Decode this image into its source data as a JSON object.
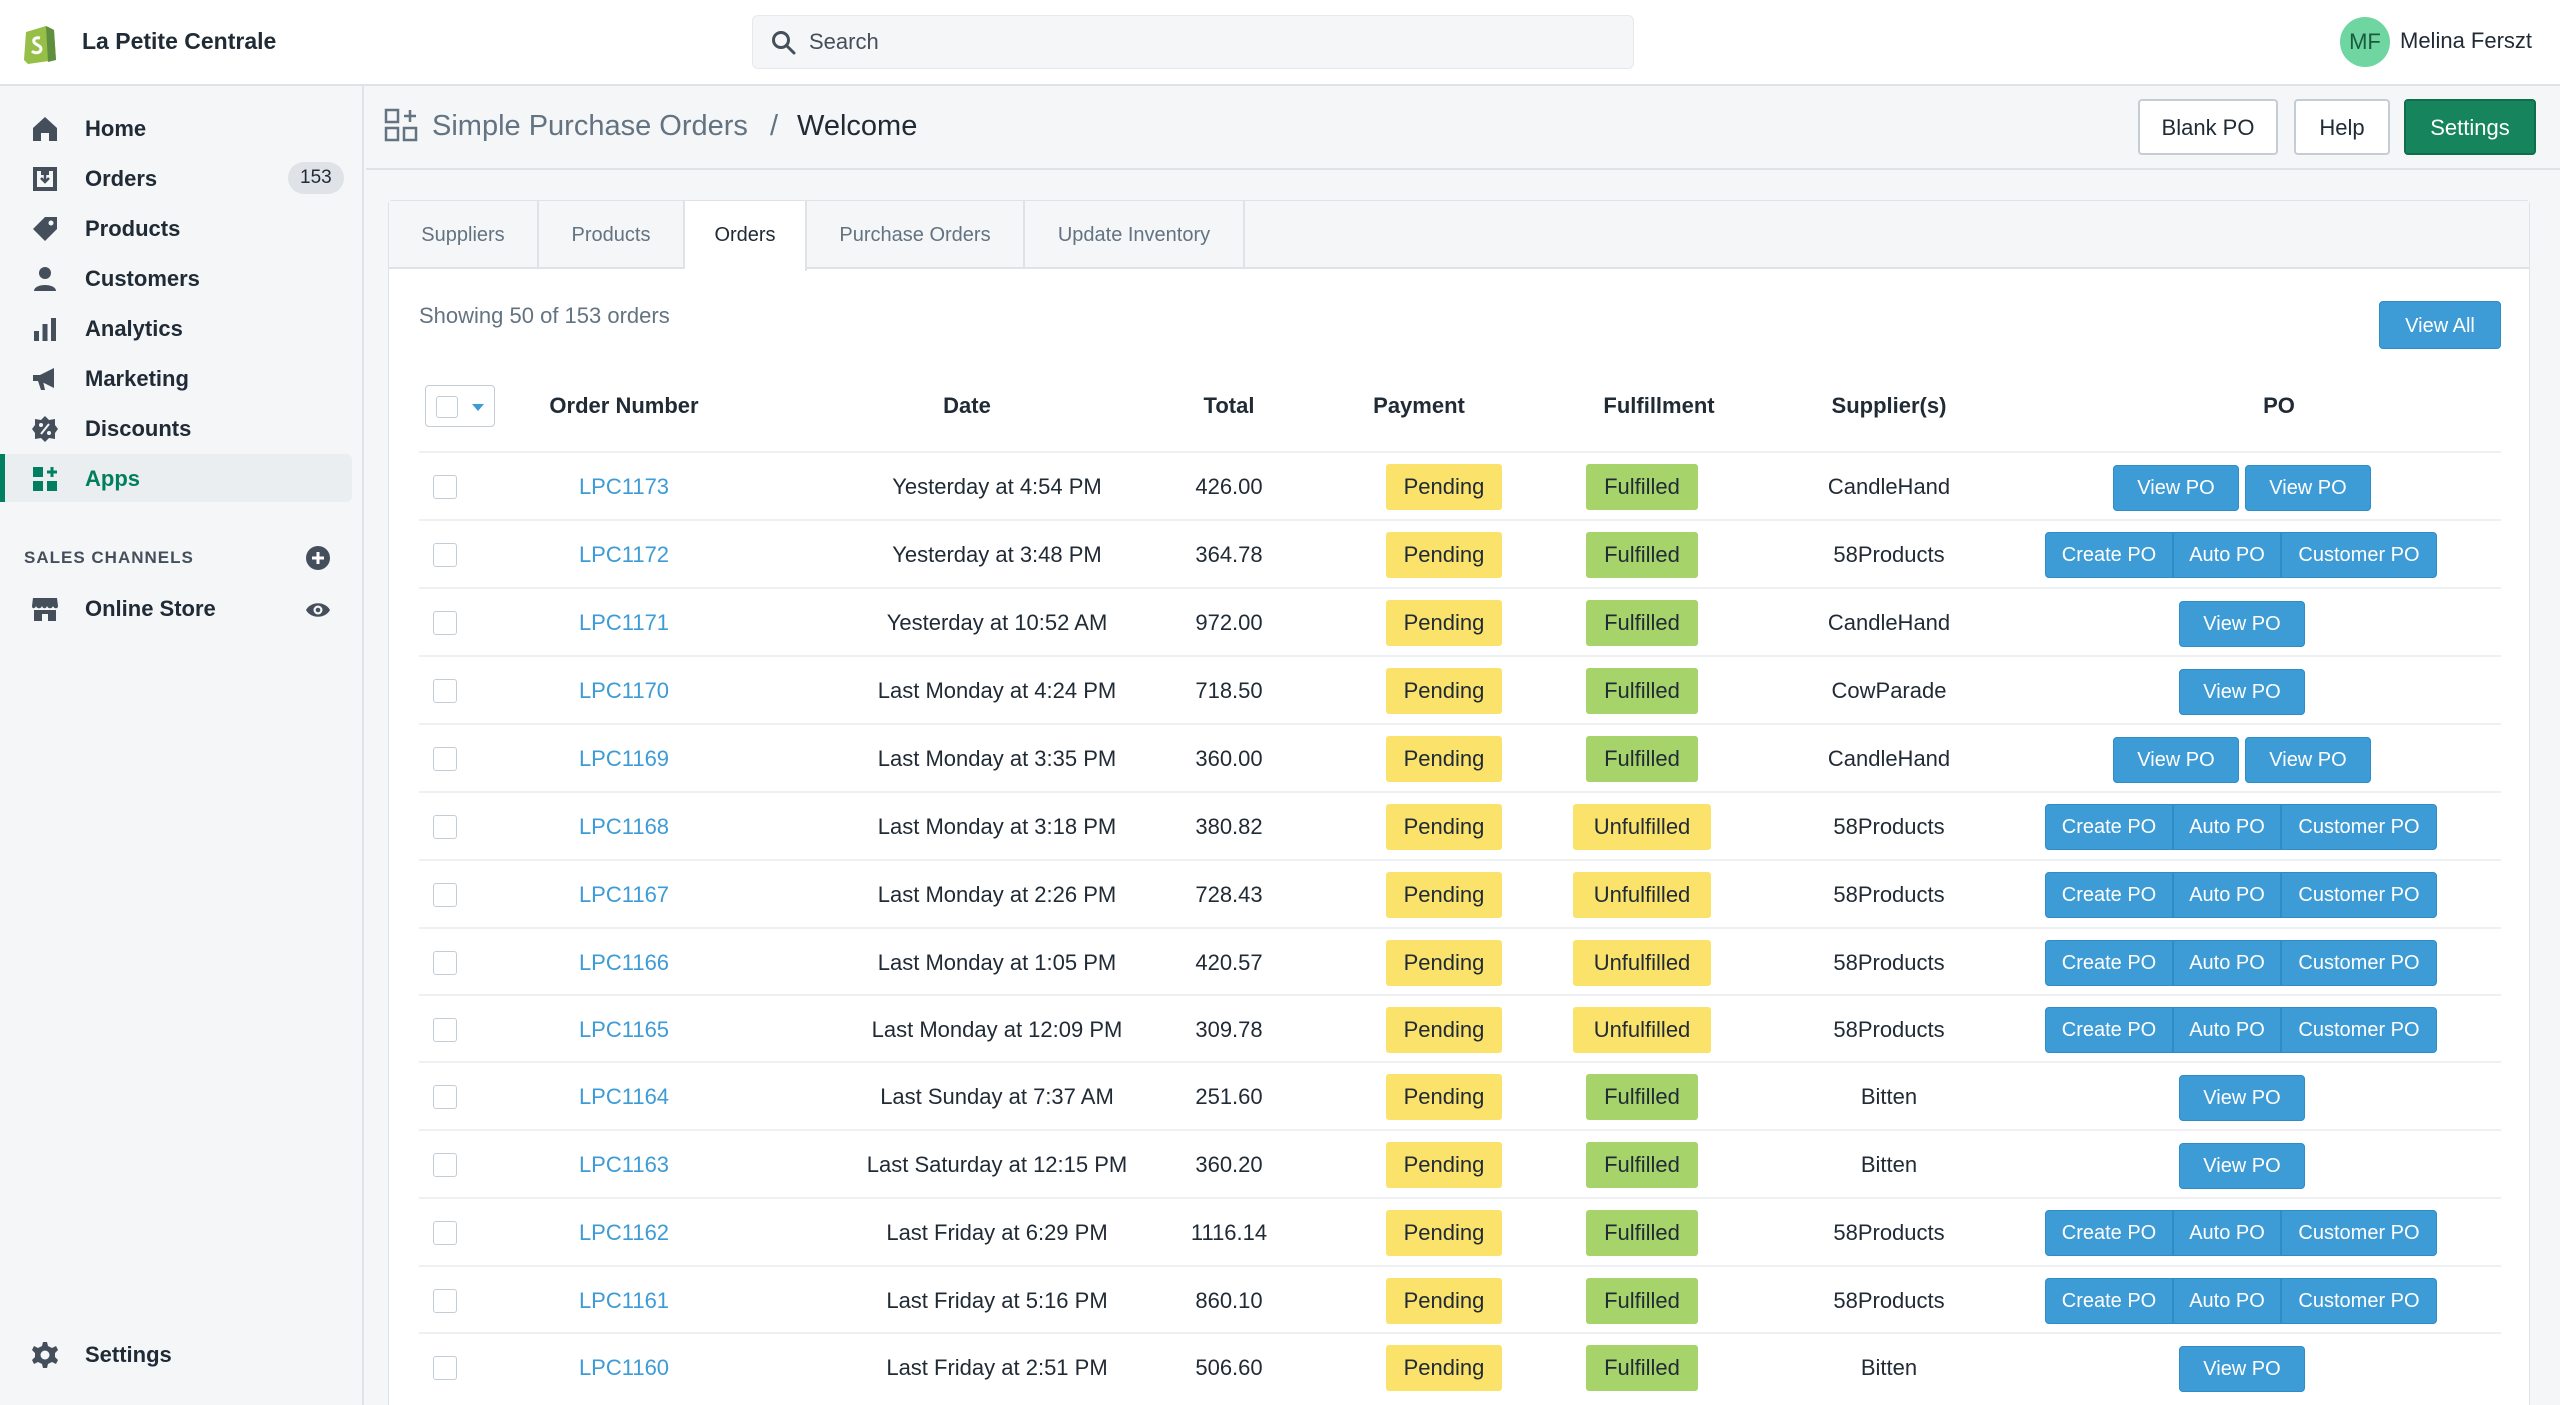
{
  "store": {
    "name": "La Petite Centrale"
  },
  "search": {
    "placeholder": "Search",
    "value": ""
  },
  "user": {
    "initials": "MF",
    "name": "Melina Ferszt"
  },
  "sidebar": {
    "items": [
      {
        "label": "Home",
        "icon": "home-icon"
      },
      {
        "label": "Orders",
        "icon": "orders-icon",
        "badge": "153"
      },
      {
        "label": "Products",
        "icon": "tag-icon"
      },
      {
        "label": "Customers",
        "icon": "person-icon"
      },
      {
        "label": "Analytics",
        "icon": "bar-chart-icon"
      },
      {
        "label": "Marketing",
        "icon": "megaphone-icon"
      },
      {
        "label": "Discounts",
        "icon": "discount-icon"
      },
      {
        "label": "Apps",
        "icon": "apps-icon",
        "active": true
      }
    ],
    "sales_channels_title": "SALES CHANNELS",
    "online_store": "Online Store",
    "settings": "Settings"
  },
  "header": {
    "app_name": "Simple Purchase Orders",
    "separator": "/",
    "page": "Welcome",
    "blank_po": "Blank PO",
    "help": "Help",
    "settings": "Settings"
  },
  "tabs": [
    "Suppliers",
    "Products",
    "Orders",
    "Purchase Orders",
    "Update Inventory"
  ],
  "active_tab": "Orders",
  "showing": "Showing 50 of 153 orders",
  "view_all": "View All",
  "columns": [
    "Order Number",
    "Date",
    "Total",
    "Payment",
    "Fulfillment",
    "Supplier(s)",
    "PO"
  ],
  "po_labels": {
    "view": "View PO",
    "create": "Create PO",
    "auto": "Auto PO",
    "customer": "Customer PO"
  },
  "orders": [
    {
      "number": "LPC1173",
      "date": "Yesterday at 4:54 PM",
      "total": "426.00",
      "payment": "Pending",
      "fulfillment": "Fulfilled",
      "supplier": "CandleHand",
      "po": "view2"
    },
    {
      "number": "LPC1172",
      "date": "Yesterday at 3:48 PM",
      "total": "364.78",
      "payment": "Pending",
      "fulfillment": "Fulfilled",
      "supplier": "58Products",
      "po": "group"
    },
    {
      "number": "LPC1171",
      "date": "Yesterday at 10:52 AM",
      "total": "972.00",
      "payment": "Pending",
      "fulfillment": "Fulfilled",
      "supplier": "CandleHand",
      "po": "view1"
    },
    {
      "number": "LPC1170",
      "date": "Last Monday at 4:24 PM",
      "total": "718.50",
      "payment": "Pending",
      "fulfillment": "Fulfilled",
      "supplier": "CowParade",
      "po": "view1"
    },
    {
      "number": "LPC1169",
      "date": "Last Monday at 3:35 PM",
      "total": "360.00",
      "payment": "Pending",
      "fulfillment": "Fulfilled",
      "supplier": "CandleHand",
      "po": "view2"
    },
    {
      "number": "LPC1168",
      "date": "Last Monday at 3:18 PM",
      "total": "380.82",
      "payment": "Pending",
      "fulfillment": "Unfulfilled",
      "supplier": "58Products",
      "po": "group"
    },
    {
      "number": "LPC1167",
      "date": "Last Monday at 2:26 PM",
      "total": "728.43",
      "payment": "Pending",
      "fulfillment": "Unfulfilled",
      "supplier": "58Products",
      "po": "group"
    },
    {
      "number": "LPC1166",
      "date": "Last Monday at 1:05 PM",
      "total": "420.57",
      "payment": "Pending",
      "fulfillment": "Unfulfilled",
      "supplier": "58Products",
      "po": "group"
    },
    {
      "number": "LPC1165",
      "date": "Last Monday at 12:09 PM",
      "total": "309.78",
      "payment": "Pending",
      "fulfillment": "Unfulfilled",
      "supplier": "58Products",
      "po": "group"
    },
    {
      "number": "LPC1164",
      "date": "Last Sunday at 7:37 AM",
      "total": "251.60",
      "payment": "Pending",
      "fulfillment": "Fulfilled",
      "supplier": "Bitten",
      "po": "view1"
    },
    {
      "number": "LPC1163",
      "date": "Last Saturday at 12:15 PM",
      "total": "360.20",
      "payment": "Pending",
      "fulfillment": "Fulfilled",
      "supplier": "Bitten",
      "po": "view1"
    },
    {
      "number": "LPC1162",
      "date": "Last Friday at 6:29 PM",
      "total": "1116.14",
      "payment": "Pending",
      "fulfillment": "Fulfilled",
      "supplier": "58Products",
      "po": "group"
    },
    {
      "number": "LPC1161",
      "date": "Last Friday at 5:16 PM",
      "total": "860.10",
      "payment": "Pending",
      "fulfillment": "Fulfilled",
      "supplier": "58Products",
      "po": "group"
    },
    {
      "number": "LPC1160",
      "date": "Last Friday at 2:51 PM",
      "total": "506.60",
      "payment": "Pending",
      "fulfillment": "Fulfilled",
      "supplier": "Bitten",
      "po": "view1"
    }
  ]
}
